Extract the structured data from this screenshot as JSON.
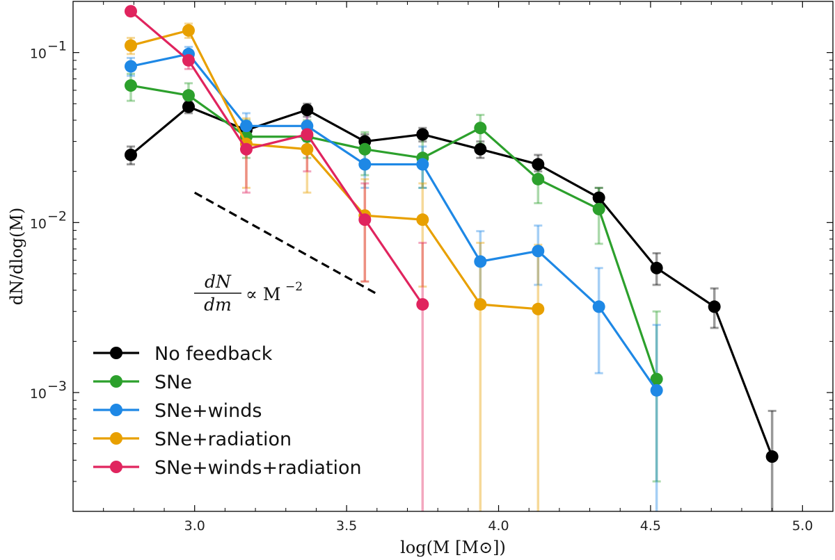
{
  "chart_data": {
    "type": "line",
    "xlabel": "log(M [M⊙])",
    "ylabel": "dN/dlog(M)",
    "xlim": [
      2.6,
      5.1
    ],
    "ylim": [
      0.0002,
      0.2
    ],
    "yscale": "log",
    "x_ticks": [
      {
        "value": 3.0,
        "label": "3.0"
      },
      {
        "value": 3.5,
        "label": "3.5"
      },
      {
        "value": 4.0,
        "label": "4.0"
      },
      {
        "value": 4.5,
        "label": "4.5"
      },
      {
        "value": 5.0,
        "label": "5.0"
      }
    ],
    "y_ticks": [
      {
        "value": 0.1,
        "base": "10",
        "exp": "−1"
      },
      {
        "value": 0.01,
        "base": "10",
        "exp": "−2"
      },
      {
        "value": 0.001,
        "base": "10",
        "exp": "−3"
      }
    ],
    "legend_position": "lower-left",
    "annotation": {
      "numerator": "dN",
      "denominator": "dm",
      "relation": "∝ M",
      "exponent": "−2",
      "line_from": [
        3.0,
        0.015
      ],
      "line_to": [
        3.6,
        0.0038
      ]
    },
    "series": [
      {
        "name": "No feedback",
        "color": "#000000",
        "x": [
          2.79,
          2.98,
          3.17,
          3.37,
          3.56,
          3.75,
          3.94,
          4.13,
          4.33,
          4.52,
          4.71,
          4.9
        ],
        "y": [
          0.025,
          0.048,
          0.035,
          0.046,
          0.03,
          0.033,
          0.027,
          0.022,
          0.014,
          0.0054,
          0.0032,
          0.00042
        ],
        "err_low": [
          0.022,
          0.044,
          0.032,
          0.042,
          0.027,
          0.03,
          0.024,
          0.02,
          0.012,
          0.0043,
          0.0024,
          0.0001
        ],
        "err_high": [
          0.028,
          0.052,
          0.038,
          0.05,
          0.033,
          0.036,
          0.03,
          0.025,
          0.016,
          0.0066,
          0.0041,
          0.00078
        ]
      },
      {
        "name": "SNe",
        "color": "#2ca02c",
        "x": [
          2.79,
          2.98,
          3.17,
          3.37,
          3.56,
          3.75,
          3.94,
          4.13,
          4.33,
          4.52
        ],
        "y": [
          0.064,
          0.056,
          0.032,
          0.032,
          0.027,
          0.024,
          0.036,
          0.018,
          0.012,
          0.0012
        ],
        "err_low": [
          0.052,
          0.046,
          0.024,
          0.024,
          0.019,
          0.016,
          0.029,
          0.013,
          0.0075,
          0.0003
        ],
        "err_high": [
          0.075,
          0.066,
          0.04,
          0.04,
          0.034,
          0.031,
          0.043,
          0.023,
          0.016,
          0.003
        ]
      },
      {
        "name": "SNe+winds",
        "color": "#1e88e5",
        "x": [
          2.79,
          2.98,
          3.17,
          3.37,
          3.56,
          3.75,
          3.94,
          4.13,
          4.33,
          4.52
        ],
        "y": [
          0.083,
          0.098,
          0.037,
          0.037,
          0.022,
          0.022,
          0.0059,
          0.0068,
          0.0032,
          0.00103
        ],
        "err_low": [
          0.073,
          0.088,
          0.03,
          0.03,
          0.016,
          0.016,
          0.0034,
          0.0043,
          0.0013,
          0.0001
        ],
        "err_high": [
          0.093,
          0.108,
          0.044,
          0.044,
          0.028,
          0.028,
          0.0089,
          0.0096,
          0.0054,
          0.0025
        ]
      },
      {
        "name": "SNe+radiation",
        "color": "#e8a000",
        "x": [
          2.79,
          2.98,
          3.17,
          3.37,
          3.56,
          3.75,
          3.94,
          4.13
        ],
        "y": [
          0.11,
          0.135,
          0.029,
          0.027,
          0.011,
          0.0104,
          0.0033,
          0.0031
        ],
        "err_low": [
          0.098,
          0.122,
          0.016,
          0.015,
          0.0045,
          0.0042,
          0.0001,
          0.0001
        ],
        "err_high": [
          0.122,
          0.148,
          0.041,
          0.039,
          0.018,
          0.017,
          0.0076,
          0.0074
        ]
      },
      {
        "name": "SNe+winds+radiation",
        "color": "#e0245e",
        "x": [
          2.79,
          2.98,
          3.17,
          3.37,
          3.56,
          3.75
        ],
        "y": [
          0.175,
          0.09,
          0.027,
          0.033,
          0.0104,
          0.0033
        ],
        "err_low": [
          0.165,
          0.08,
          0.015,
          0.02,
          0.0045,
          0.0001
        ],
        "err_high": [
          0.185,
          0.1,
          0.039,
          0.045,
          0.017,
          0.0076
        ]
      }
    ]
  }
}
